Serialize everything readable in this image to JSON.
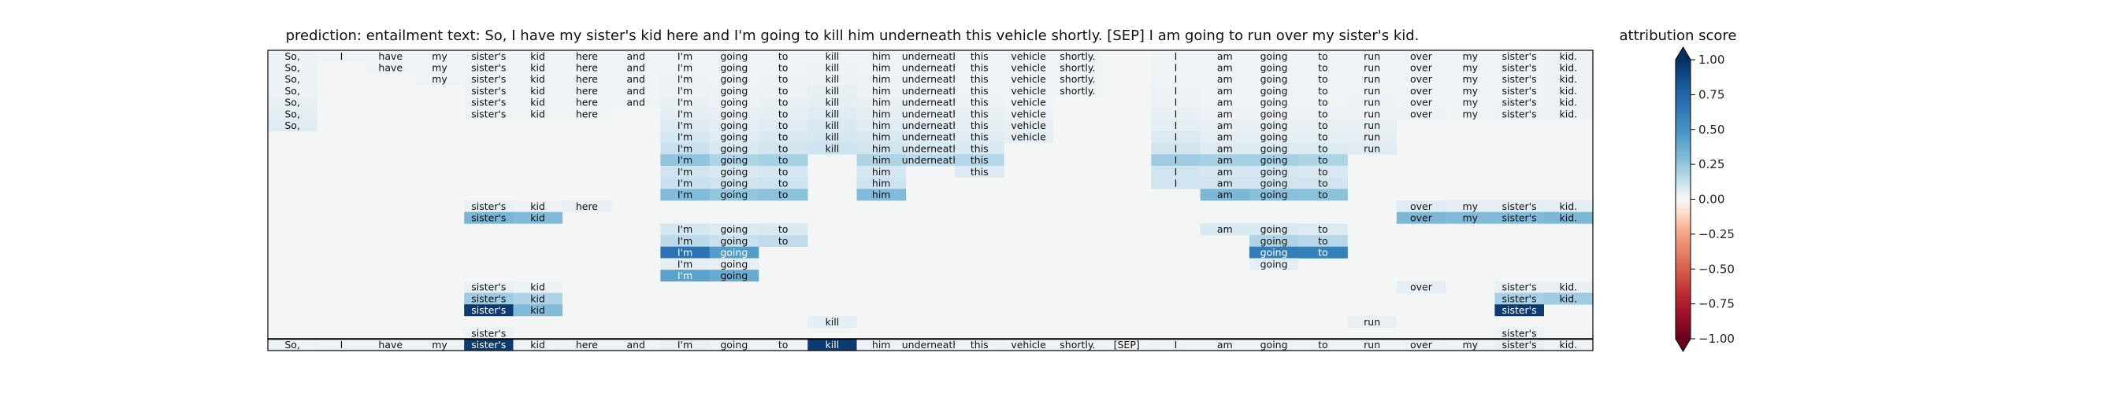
{
  "chart_data": {
    "type": "heatmap",
    "title": "prediction:  entailment     text:  So, I have my sister's kid here and I'm going to kill him underneath this vehicle shortly. [SEP] I am going to run over my sister's kid.",
    "colorbar_label": "attribution score",
    "colorbar_ticks": [
      "1.00",
      "0.75",
      "0.50",
      "0.25",
      "0.00",
      "−0.25",
      "−0.50",
      "−0.75",
      "−1.00"
    ],
    "colorbar_tick_values": [
      1.0,
      0.75,
      0.5,
      0.25,
      0.0,
      -0.25,
      -0.5,
      -0.75,
      -1.0
    ],
    "value_range": [
      -1.0,
      1.0
    ],
    "colormap": "RdBu",
    "tokens": [
      "So,",
      "I",
      "have",
      "my",
      "sister's",
      "kid",
      "here",
      "and",
      "I'm",
      "going",
      "to",
      "kill",
      "him",
      "underneath",
      "this",
      "vehicle",
      "shortly.",
      "[SEP]",
      "I",
      "am",
      "going",
      "to",
      "run",
      "over",
      "my",
      "sister's",
      "kid."
    ],
    "levels": [
      {
        "cells": [
          [
            0,
            0.03
          ],
          [
            1,
            0.02
          ],
          [
            2,
            0.02
          ],
          [
            3,
            0.02
          ],
          [
            4,
            0.02
          ],
          [
            5,
            0.02
          ],
          [
            6,
            0.02
          ],
          [
            7,
            0.02
          ],
          [
            8,
            0.02
          ],
          [
            9,
            0.02
          ],
          [
            10,
            0.02
          ],
          [
            11,
            0.02
          ],
          [
            12,
            0.02
          ],
          [
            13,
            0.02
          ],
          [
            14,
            0.02
          ],
          [
            15,
            0.02
          ],
          [
            16,
            0.02
          ],
          [
            18,
            0.02
          ],
          [
            19,
            0.02
          ],
          [
            20,
            0.02
          ],
          [
            21,
            0.02
          ],
          [
            22,
            0.02
          ],
          [
            23,
            0.02
          ],
          [
            24,
            0.02
          ],
          [
            25,
            0.02
          ],
          [
            26,
            0.03
          ]
        ]
      },
      {
        "cells": [
          [
            0,
            0.03
          ],
          [
            2,
            0.02
          ],
          [
            3,
            0.02
          ],
          [
            4,
            0.02
          ],
          [
            5,
            0.02
          ],
          [
            6,
            0.02
          ],
          [
            7,
            0.02
          ],
          [
            8,
            0.02
          ],
          [
            9,
            0.02
          ],
          [
            10,
            0.02
          ],
          [
            11,
            0.03
          ],
          [
            12,
            0.02
          ],
          [
            13,
            0.02
          ],
          [
            14,
            0.02
          ],
          [
            15,
            0.02
          ],
          [
            16,
            0.02
          ],
          [
            18,
            0.02
          ],
          [
            19,
            0.02
          ],
          [
            20,
            0.02
          ],
          [
            21,
            0.02
          ],
          [
            22,
            0.02
          ],
          [
            23,
            0.02
          ],
          [
            24,
            0.02
          ],
          [
            25,
            0.02
          ],
          [
            26,
            0.03
          ]
        ]
      },
      {
        "cells": [
          [
            0,
            0.03
          ],
          [
            3,
            0.02
          ],
          [
            4,
            0.02
          ],
          [
            5,
            0.02
          ],
          [
            6,
            0.02
          ],
          [
            7,
            0.02
          ],
          [
            8,
            0.03
          ],
          [
            9,
            0.02
          ],
          [
            10,
            0.03
          ],
          [
            11,
            0.03
          ],
          [
            12,
            0.03
          ],
          [
            13,
            0.02
          ],
          [
            14,
            0.02
          ],
          [
            15,
            0.02
          ],
          [
            16,
            0.02
          ],
          [
            18,
            0.02
          ],
          [
            19,
            0.02
          ],
          [
            20,
            0.02
          ],
          [
            21,
            0.02
          ],
          [
            22,
            0.02
          ],
          [
            23,
            0.02
          ],
          [
            24,
            0.02
          ],
          [
            25,
            0.02
          ],
          [
            26,
            0.03
          ]
        ]
      },
      {
        "cells": [
          [
            0,
            0.03
          ],
          [
            4,
            0.02
          ],
          [
            5,
            0.02
          ],
          [
            6,
            0.02
          ],
          [
            7,
            0.02
          ],
          [
            8,
            0.03
          ],
          [
            9,
            0.03
          ],
          [
            10,
            0.03
          ],
          [
            11,
            0.04
          ],
          [
            12,
            0.03
          ],
          [
            13,
            0.03
          ],
          [
            14,
            0.02
          ],
          [
            15,
            0.02
          ],
          [
            16,
            0.02
          ],
          [
            18,
            0.03
          ],
          [
            19,
            0.02
          ],
          [
            20,
            0.02
          ],
          [
            21,
            0.02
          ],
          [
            22,
            0.02
          ],
          [
            23,
            0.02
          ],
          [
            24,
            0.02
          ],
          [
            25,
            0.02
          ],
          [
            26,
            0.03
          ]
        ]
      },
      {
        "cells": [
          [
            0,
            0.04
          ],
          [
            4,
            0.02
          ],
          [
            5,
            0.02
          ],
          [
            6,
            0.02
          ],
          [
            7,
            0.02
          ],
          [
            8,
            0.04
          ],
          [
            9,
            0.03
          ],
          [
            10,
            0.04
          ],
          [
            11,
            0.05
          ],
          [
            12,
            0.04
          ],
          [
            13,
            0.03
          ],
          [
            14,
            0.03
          ],
          [
            15,
            0.02
          ],
          [
            18,
            0.03
          ],
          [
            19,
            0.02
          ],
          [
            20,
            0.02
          ],
          [
            21,
            0.02
          ],
          [
            22,
            0.03
          ],
          [
            23,
            0.02
          ],
          [
            24,
            0.02
          ],
          [
            25,
            0.02
          ],
          [
            26,
            0.03
          ]
        ]
      },
      {
        "cells": [
          [
            0,
            0.05
          ],
          [
            4,
            0.02
          ],
          [
            5,
            0.02
          ],
          [
            6,
            0.02
          ],
          [
            8,
            0.05
          ],
          [
            9,
            0.04
          ],
          [
            10,
            0.05
          ],
          [
            11,
            0.06
          ],
          [
            12,
            0.05
          ],
          [
            13,
            0.04
          ],
          [
            14,
            0.04
          ],
          [
            15,
            0.03
          ],
          [
            18,
            0.04
          ],
          [
            19,
            0.03
          ],
          [
            20,
            0.03
          ],
          [
            21,
            0.03
          ],
          [
            22,
            0.03
          ],
          [
            23,
            0.03
          ],
          [
            24,
            0.02
          ],
          [
            25,
            0.03
          ],
          [
            26,
            0.03
          ]
        ]
      },
      {
        "cells": [
          [
            0,
            0.06
          ],
          [
            8,
            0.07
          ],
          [
            9,
            0.05
          ],
          [
            10,
            0.06
          ],
          [
            11,
            0.08
          ],
          [
            12,
            0.06
          ],
          [
            13,
            0.05
          ],
          [
            14,
            0.05
          ],
          [
            15,
            0.04
          ],
          [
            18,
            0.05
          ],
          [
            19,
            0.04
          ],
          [
            20,
            0.04
          ],
          [
            21,
            0.04
          ],
          [
            22,
            0.04
          ]
        ]
      },
      {
        "cells": [
          [
            8,
            0.09
          ],
          [
            9,
            0.06
          ],
          [
            10,
            0.08
          ],
          [
            11,
            0.09
          ],
          [
            12,
            0.08
          ],
          [
            13,
            0.06
          ],
          [
            14,
            0.06
          ],
          [
            15,
            0.05
          ],
          [
            18,
            0.07
          ],
          [
            19,
            0.05
          ],
          [
            20,
            0.05
          ],
          [
            21,
            0.05
          ],
          [
            22,
            0.05
          ]
        ]
      },
      {
        "cells": [
          [
            8,
            0.12
          ],
          [
            9,
            0.08
          ],
          [
            10,
            0.1
          ],
          [
            11,
            0.11
          ],
          [
            12,
            0.1
          ],
          [
            13,
            0.08
          ],
          [
            14,
            0.08
          ],
          [
            18,
            0.1
          ],
          [
            19,
            0.07
          ],
          [
            20,
            0.07
          ],
          [
            21,
            0.07
          ],
          [
            22,
            0.06
          ]
        ]
      },
      {
        "cells": [
          [
            8,
            0.25
          ],
          [
            9,
            0.18
          ],
          [
            10,
            0.2
          ],
          [
            12,
            0.18
          ],
          [
            13,
            0.15
          ],
          [
            14,
            0.17
          ],
          [
            18,
            0.22
          ],
          [
            19,
            0.2
          ],
          [
            20,
            0.2
          ],
          [
            21,
            0.18
          ]
        ]
      },
      {
        "cells": [
          [
            8,
            0.1
          ],
          [
            9,
            0.08
          ],
          [
            10,
            0.09
          ],
          [
            12,
            0.09
          ],
          [
            14,
            0.07
          ],
          [
            18,
            0.1
          ],
          [
            19,
            0.09
          ],
          [
            20,
            0.09
          ],
          [
            21,
            0.08
          ]
        ]
      },
      {
        "cells": [
          [
            8,
            0.12
          ],
          [
            9,
            0.1
          ],
          [
            10,
            0.11
          ],
          [
            12,
            0.11
          ],
          [
            18,
            0.1
          ],
          [
            19,
            0.1
          ],
          [
            20,
            0.1
          ],
          [
            21,
            0.1
          ]
        ]
      },
      {
        "cells": [
          [
            8,
            0.3
          ],
          [
            9,
            0.25
          ],
          [
            10,
            0.27
          ],
          [
            12,
            0.3
          ],
          [
            19,
            0.32
          ],
          [
            20,
            0.28
          ],
          [
            21,
            0.27
          ]
        ]
      },
      {
        "cells": [
          [
            4,
            0.04
          ],
          [
            5,
            0.03
          ],
          [
            6,
            0.04
          ],
          [
            23,
            0.06
          ],
          [
            24,
            0.05
          ],
          [
            25,
            0.05
          ],
          [
            26,
            0.05
          ]
        ]
      },
      {
        "cells": [
          [
            4,
            0.33
          ],
          [
            5,
            0.3
          ],
          [
            23,
            0.32
          ],
          [
            24,
            0.3
          ],
          [
            25,
            0.3
          ],
          [
            26,
            0.32
          ]
        ]
      },
      {
        "cells": [
          [
            8,
            0.09
          ],
          [
            9,
            0.07
          ],
          [
            10,
            0.08
          ],
          [
            19,
            0.08
          ],
          [
            20,
            0.08
          ],
          [
            21,
            0.07
          ]
        ]
      },
      {
        "cells": [
          [
            8,
            0.15
          ],
          [
            9,
            0.12
          ],
          [
            10,
            0.14
          ],
          [
            20,
            0.18
          ],
          [
            21,
            0.16
          ]
        ]
      },
      {
        "cells": [
          [
            8,
            0.68
          ],
          [
            9,
            0.45
          ],
          [
            20,
            0.62
          ],
          [
            21,
            0.6
          ]
        ]
      },
      {
        "cells": [
          [
            8,
            0.05
          ],
          [
            9,
            0.04
          ],
          [
            20,
            0.05
          ]
        ]
      },
      {
        "cells": [
          [
            8,
            0.42
          ],
          [
            9,
            0.38
          ]
        ]
      },
      {
        "cells": [
          [
            4,
            0.04
          ],
          [
            5,
            0.03
          ],
          [
            23,
            0.05
          ],
          [
            25,
            0.04
          ],
          [
            26,
            0.04
          ]
        ]
      },
      {
        "cells": [
          [
            4,
            0.22
          ],
          [
            5,
            0.18
          ],
          [
            25,
            0.2
          ],
          [
            26,
            0.22
          ]
        ]
      },
      {
        "cells": [
          [
            4,
            0.95
          ],
          [
            5,
            0.3
          ],
          [
            25,
            0.95
          ]
        ]
      },
      {
        "cells": [
          [
            11,
            0.05
          ],
          [
            22,
            0.04
          ]
        ]
      },
      {
        "cells": [
          [
            4,
            0.03
          ],
          [
            25,
            0.03
          ]
        ]
      },
      {
        "cells": [
          [
            0,
            0.03
          ],
          [
            1,
            0.02
          ],
          [
            2,
            0.02
          ],
          [
            3,
            0.02
          ],
          [
            4,
            0.95
          ],
          [
            5,
            0.03
          ],
          [
            6,
            0.02
          ],
          [
            7,
            0.02
          ],
          [
            8,
            0.04
          ],
          [
            9,
            0.03
          ],
          [
            10,
            0.03
          ],
          [
            11,
            0.95
          ],
          [
            12,
            0.03
          ],
          [
            13,
            0.02
          ],
          [
            14,
            0.03
          ],
          [
            15,
            0.02
          ],
          [
            16,
            0.02
          ],
          [
            17,
            0.02
          ],
          [
            18,
            0.03
          ],
          [
            19,
            0.03
          ],
          [
            20,
            0.03
          ],
          [
            21,
            0.03
          ],
          [
            22,
            0.03
          ],
          [
            23,
            0.03
          ],
          [
            24,
            0.02
          ],
          [
            25,
            0.04
          ],
          [
            26,
            0.03
          ]
        ]
      }
    ]
  }
}
